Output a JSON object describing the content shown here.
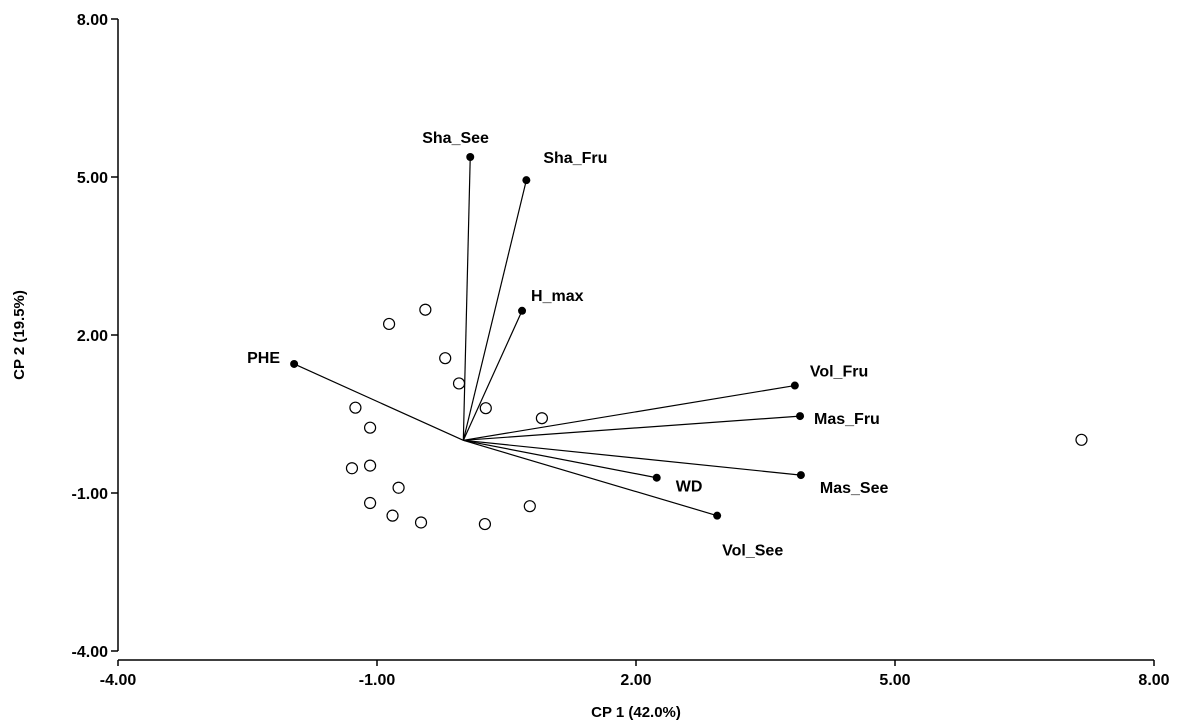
{
  "chart_data": {
    "type": "scatter",
    "subtype": "pca-biplot",
    "title": "",
    "xlabel": "CP 1 (42.0%)",
    "ylabel": "CP 2 (19.5%)",
    "xlim": [
      -4,
      8
    ],
    "ylim": [
      -4,
      8
    ],
    "xticks": [
      -4,
      -1,
      2,
      5,
      8
    ],
    "yticks": [
      -4,
      -1,
      2,
      5,
      8
    ],
    "xtick_labels": [
      "-4.00",
      "-1.00",
      "2.00",
      "5.00",
      "8.00"
    ],
    "ytick_labels": [
      "-4.00",
      "-1.00",
      "2.00",
      "5.00",
      "8.00"
    ],
    "grid": false,
    "legend": "none",
    "vector_origin": [
      0.0,
      0.0
    ],
    "loadings": [
      {
        "label": "Sha_See",
        "x": 0.08,
        "y": 5.38
      },
      {
        "label": "Sha_Fru",
        "x": 0.73,
        "y": 4.94
      },
      {
        "label": "H_max",
        "x": 0.68,
        "y": 2.46
      },
      {
        "label": "PHE",
        "x": -1.96,
        "y": 1.45
      },
      {
        "label": "Vol_Fru",
        "x": 3.84,
        "y": 1.04
      },
      {
        "label": "Mas_Fru",
        "x": 3.9,
        "y": 0.46
      },
      {
        "label": "Mas_See",
        "x": 3.91,
        "y": -0.66
      },
      {
        "label": "WD",
        "x": 2.24,
        "y": -0.71
      },
      {
        "label": "Vol_See",
        "x": 2.94,
        "y": -1.43
      }
    ],
    "scores": [
      {
        "x": -0.44,
        "y": 2.48
      },
      {
        "x": -0.86,
        "y": 2.21
      },
      {
        "x": -0.21,
        "y": 1.56
      },
      {
        "x": -0.05,
        "y": 1.08
      },
      {
        "x": 0.26,
        "y": 0.61
      },
      {
        "x": 0.91,
        "y": 0.42
      },
      {
        "x": -1.25,
        "y": 0.62
      },
      {
        "x": -1.08,
        "y": 0.24
      },
      {
        "x": -1.08,
        "y": -0.48
      },
      {
        "x": -1.29,
        "y": -0.53
      },
      {
        "x": -0.75,
        "y": -0.9
      },
      {
        "x": -1.08,
        "y": -1.19
      },
      {
        "x": -0.82,
        "y": -1.43
      },
      {
        "x": -0.49,
        "y": -1.56
      },
      {
        "x": 0.25,
        "y": -1.59
      },
      {
        "x": 0.77,
        "y": -1.25
      },
      {
        "x": 7.16,
        "y": 0.01
      }
    ]
  }
}
